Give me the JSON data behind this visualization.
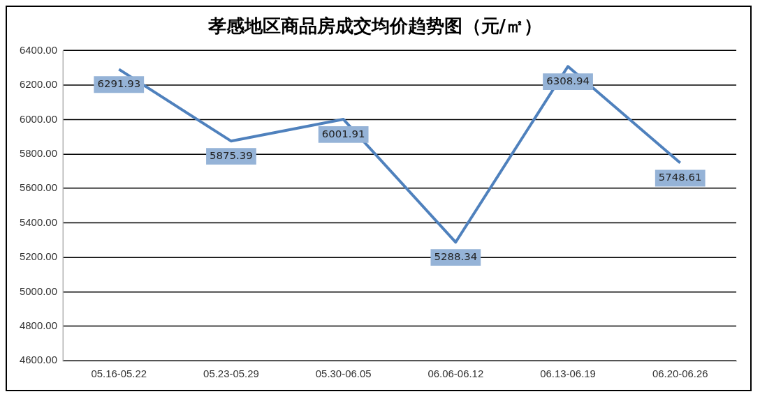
{
  "chart_data": {
    "type": "line",
    "title": "孝感地区商品房成交均价趋势图（元/㎡）",
    "categories": [
      "05.16-05.22",
      "05.23-05.29",
      "05.30-06.05",
      "06.06-06.12",
      "06.13-06.19",
      "06.20-06.26"
    ],
    "series": [
      {
        "color": "#4f81bd",
        "values": [
          6291.93,
          5875.39,
          6001.91,
          5288.34,
          6308.94,
          5748.61
        ]
      }
    ],
    "ylim": [
      4600,
      6400
    ],
    "yticks": [
      {
        "value": 4600,
        "label": "4600.00"
      },
      {
        "value": 4800,
        "label": "4800.00"
      },
      {
        "value": 5000,
        "label": "5000.00"
      },
      {
        "value": 5200,
        "label": "5200.00"
      },
      {
        "value": 5400,
        "label": "5400.00"
      },
      {
        "value": 5600,
        "label": "5600.00"
      },
      {
        "value": 5800,
        "label": "5800.00"
      },
      {
        "value": 6000,
        "label": "6000.00"
      },
      {
        "value": 6200,
        "label": "6200.00"
      },
      {
        "value": 6400,
        "label": "6400.00"
      }
    ],
    "grid": "y",
    "legend": false,
    "marker": "none",
    "line_style": "solid",
    "data_labels": true
  }
}
